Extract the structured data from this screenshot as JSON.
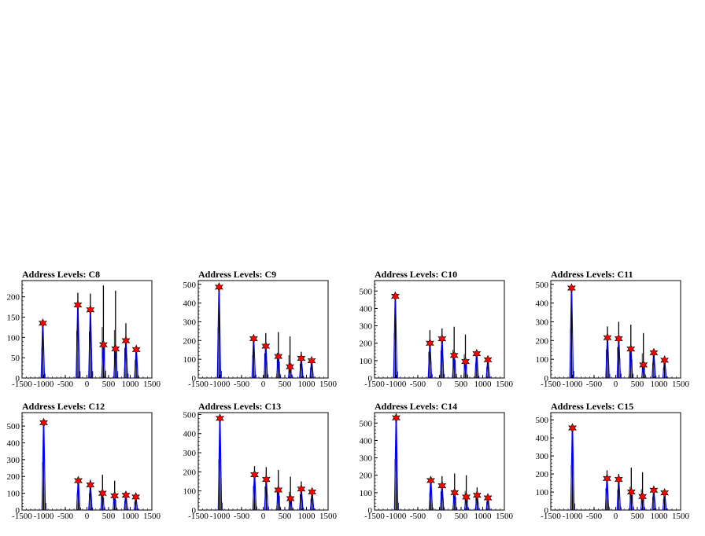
{
  "colors": {
    "background": "#ffffff",
    "histogram": "#000000",
    "fit": "#0000ff",
    "marker": "#ff0000"
  },
  "chart_data": [
    {
      "type": "bar",
      "title": "Address Levels: C8",
      "xlim": [
        -1500,
        1500
      ],
      "ylim": [
        0,
        240
      ],
      "xticks": [
        "-1500",
        "-1000",
        "-500",
        "0",
        "500",
        "1000",
        "1500"
      ],
      "yticks": [
        "0",
        "50",
        "100",
        "150",
        "200"
      ],
      "xtick_values": [
        -1500,
        -1000,
        -500,
        0,
        500,
        1000,
        1500
      ],
      "ytick_values": [
        0,
        50,
        100,
        150,
        200
      ],
      "peaks": [
        {
          "x": -1020,
          "height": 135,
          "fit": 135,
          "marker": 135
        },
        {
          "x": -210,
          "height": 210,
          "fit": 180,
          "marker": 180
        },
        {
          "x": 80,
          "height": 208,
          "fit": 168,
          "marker": 168
        },
        {
          "x": 380,
          "height": 228,
          "fit": 82,
          "marker": 82
        },
        {
          "x": 660,
          "height": 215,
          "fit": 72,
          "marker": 72
        },
        {
          "x": 900,
          "height": 135,
          "fit": 92,
          "marker": 92
        },
        {
          "x": 1140,
          "height": 80,
          "fit": 70,
          "marker": 70
        }
      ]
    },
    {
      "type": "bar",
      "title": "Address Levels: C9",
      "xlim": [
        -1500,
        1500
      ],
      "ylim": [
        0,
        520
      ],
      "xticks": [
        "-1500",
        "-1000",
        "-500",
        "0",
        "500",
        "1000",
        "1500"
      ],
      "yticks": [
        "0",
        "100",
        "200",
        "300",
        "400",
        "500"
      ],
      "xtick_values": [
        -1500,
        -1000,
        -500,
        0,
        500,
        1000,
        1500
      ],
      "ytick_values": [
        0,
        100,
        200,
        300,
        400,
        500
      ],
      "peaks": [
        {
          "x": -1020,
          "height": 485,
          "fit": 485,
          "marker": 485
        },
        {
          "x": -220,
          "height": 220,
          "fit": 210,
          "marker": 210
        },
        {
          "x": 60,
          "height": 240,
          "fit": 170,
          "marker": 170
        },
        {
          "x": 350,
          "height": 245,
          "fit": 115,
          "marker": 115
        },
        {
          "x": 620,
          "height": 222,
          "fit": 60,
          "marker": 60
        },
        {
          "x": 880,
          "height": 140,
          "fit": 105,
          "marker": 105
        },
        {
          "x": 1120,
          "height": 100,
          "fit": 92,
          "marker": 92
        }
      ]
    },
    {
      "type": "bar",
      "title": "Address Levels: C10",
      "xlim": [
        -1500,
        1500
      ],
      "ylim": [
        0,
        560
      ],
      "xticks": [
        "-1500",
        "-1000",
        "-500",
        "0",
        "500",
        "1000",
        "1500"
      ],
      "yticks": [
        "0",
        "100",
        "200",
        "300",
        "400",
        "500"
      ],
      "xtick_values": [
        -1500,
        -1000,
        -500,
        0,
        500,
        1000,
        1500
      ],
      "ytick_values": [
        0,
        100,
        200,
        300,
        400,
        500
      ],
      "peaks": [
        {
          "x": -1020,
          "height": 470,
          "fit": 470,
          "marker": 470
        },
        {
          "x": -220,
          "height": 275,
          "fit": 200,
          "marker": 200
        },
        {
          "x": 60,
          "height": 285,
          "fit": 225,
          "marker": 225
        },
        {
          "x": 340,
          "height": 295,
          "fit": 130,
          "marker": 130
        },
        {
          "x": 600,
          "height": 250,
          "fit": 95,
          "marker": 95
        },
        {
          "x": 860,
          "height": 150,
          "fit": 140,
          "marker": 140
        },
        {
          "x": 1120,
          "height": 115,
          "fit": 105,
          "marker": 105
        }
      ]
    },
    {
      "type": "bar",
      "title": "Address Levels: C11",
      "xlim": [
        -1500,
        1500
      ],
      "ylim": [
        0,
        520
      ],
      "xticks": [
        "-1500",
        "-1000",
        "-500",
        "0",
        "500",
        "1000",
        "1500"
      ],
      "yticks": [
        "0",
        "100",
        "200",
        "300",
        "400",
        "500"
      ],
      "xtick_values": [
        -1500,
        -1000,
        -500,
        0,
        500,
        1000,
        1500
      ],
      "ytick_values": [
        0,
        100,
        200,
        300,
        400,
        500
      ],
      "peaks": [
        {
          "x": -1020,
          "height": 480,
          "fit": 480,
          "marker": 480
        },
        {
          "x": -190,
          "height": 275,
          "fit": 215,
          "marker": 215
        },
        {
          "x": 70,
          "height": 300,
          "fit": 210,
          "marker": 210
        },
        {
          "x": 350,
          "height": 285,
          "fit": 155,
          "marker": 155
        },
        {
          "x": 640,
          "height": 240,
          "fit": 70,
          "marker": 70
        },
        {
          "x": 880,
          "height": 145,
          "fit": 135,
          "marker": 135
        },
        {
          "x": 1130,
          "height": 100,
          "fit": 95,
          "marker": 95
        }
      ]
    },
    {
      "type": "bar",
      "title": "Address Levels: C12",
      "xlim": [
        -1500,
        1500
      ],
      "ylim": [
        0,
        580
      ],
      "xticks": [
        "-1500",
        "-1000",
        "-500",
        "0",
        "500",
        "1000",
        "1500"
      ],
      "yticks": [
        "0",
        "100",
        "200",
        "300",
        "400",
        "500"
      ],
      "xtick_values": [
        -1500,
        -1000,
        -500,
        0,
        500,
        1000,
        1500
      ],
      "ytick_values": [
        0,
        100,
        200,
        300,
        400,
        500
      ],
      "peaks": [
        {
          "x": -1000,
          "height": 520,
          "fit": 520,
          "marker": 520
        },
        {
          "x": -200,
          "height": 185,
          "fit": 175,
          "marker": 175
        },
        {
          "x": 80,
          "height": 180,
          "fit": 150,
          "marker": 150
        },
        {
          "x": 360,
          "height": 210,
          "fit": 100,
          "marker": 100
        },
        {
          "x": 640,
          "height": 175,
          "fit": 85,
          "marker": 85
        },
        {
          "x": 900,
          "height": 100,
          "fit": 88,
          "marker": 88
        },
        {
          "x": 1130,
          "height": 88,
          "fit": 78,
          "marker": 78
        }
      ]
    },
    {
      "type": "bar",
      "title": "Address Levels: C13",
      "xlim": [
        -1500,
        1500
      ],
      "ylim": [
        0,
        510
      ],
      "xticks": [
        "-1500",
        "-1000",
        "-500",
        "0",
        "500",
        "1000",
        "1500"
      ],
      "yticks": [
        "0",
        "100",
        "200",
        "300",
        "400",
        "500"
      ],
      "xtick_values": [
        -1500,
        -1000,
        -500,
        0,
        500,
        1000,
        1500
      ],
      "ytick_values": [
        0,
        100,
        200,
        300,
        400,
        500
      ],
      "peaks": [
        {
          "x": -1000,
          "height": 480,
          "fit": 480,
          "marker": 480
        },
        {
          "x": -200,
          "height": 230,
          "fit": 185,
          "marker": 185
        },
        {
          "x": 70,
          "height": 225,
          "fit": 160,
          "marker": 160
        },
        {
          "x": 350,
          "height": 210,
          "fit": 105,
          "marker": 105
        },
        {
          "x": 630,
          "height": 175,
          "fit": 60,
          "marker": 60
        },
        {
          "x": 880,
          "height": 150,
          "fit": 110,
          "marker": 110
        },
        {
          "x": 1130,
          "height": 110,
          "fit": 95,
          "marker": 95
        }
      ]
    },
    {
      "type": "bar",
      "title": "Address Levels: C14",
      "xlim": [
        -1500,
        1500
      ],
      "ylim": [
        0,
        560
      ],
      "xticks": [
        "-1500",
        "-1000",
        "-500",
        "0",
        "500",
        "1000",
        "1500"
      ],
      "yticks": [
        "0",
        "100",
        "200",
        "300",
        "400",
        "500"
      ],
      "xtick_values": [
        -1500,
        -1000,
        -500,
        0,
        500,
        1000,
        1500
      ],
      "ytick_values": [
        0,
        100,
        200,
        300,
        400,
        500
      ],
      "peaks": [
        {
          "x": -1000,
          "height": 530,
          "fit": 530,
          "marker": 530
        },
        {
          "x": -200,
          "height": 180,
          "fit": 170,
          "marker": 170
        },
        {
          "x": 60,
          "height": 195,
          "fit": 140,
          "marker": 140
        },
        {
          "x": 350,
          "height": 210,
          "fit": 100,
          "marker": 100
        },
        {
          "x": 620,
          "height": 200,
          "fit": 75,
          "marker": 75
        },
        {
          "x": 870,
          "height": 130,
          "fit": 85,
          "marker": 85
        },
        {
          "x": 1120,
          "height": 90,
          "fit": 70,
          "marker": 70
        }
      ]
    },
    {
      "type": "bar",
      "title": "Address Levels: C15",
      "xlim": [
        -1500,
        1500
      ],
      "ylim": [
        0,
        540
      ],
      "xticks": [
        "-1500",
        "-1000",
        "-500",
        "0",
        "500",
        "1000",
        "1500"
      ],
      "yticks": [
        "0",
        "100",
        "200",
        "300",
        "400",
        "500"
      ],
      "xtick_values": [
        -1500,
        -1000,
        -500,
        0,
        500,
        1000,
        1500
      ],
      "ytick_values": [
        0,
        100,
        200,
        300,
        400,
        500
      ],
      "peaks": [
        {
          "x": -1000,
          "height": 455,
          "fit": 455,
          "marker": 455
        },
        {
          "x": -200,
          "height": 220,
          "fit": 175,
          "marker": 175
        },
        {
          "x": 70,
          "height": 200,
          "fit": 170,
          "marker": 170
        },
        {
          "x": 360,
          "height": 235,
          "fit": 100,
          "marker": 100
        },
        {
          "x": 620,
          "height": 210,
          "fit": 75,
          "marker": 75
        },
        {
          "x": 880,
          "height": 130,
          "fit": 110,
          "marker": 110
        },
        {
          "x": 1130,
          "height": 110,
          "fit": 95,
          "marker": 95
        }
      ]
    }
  ]
}
